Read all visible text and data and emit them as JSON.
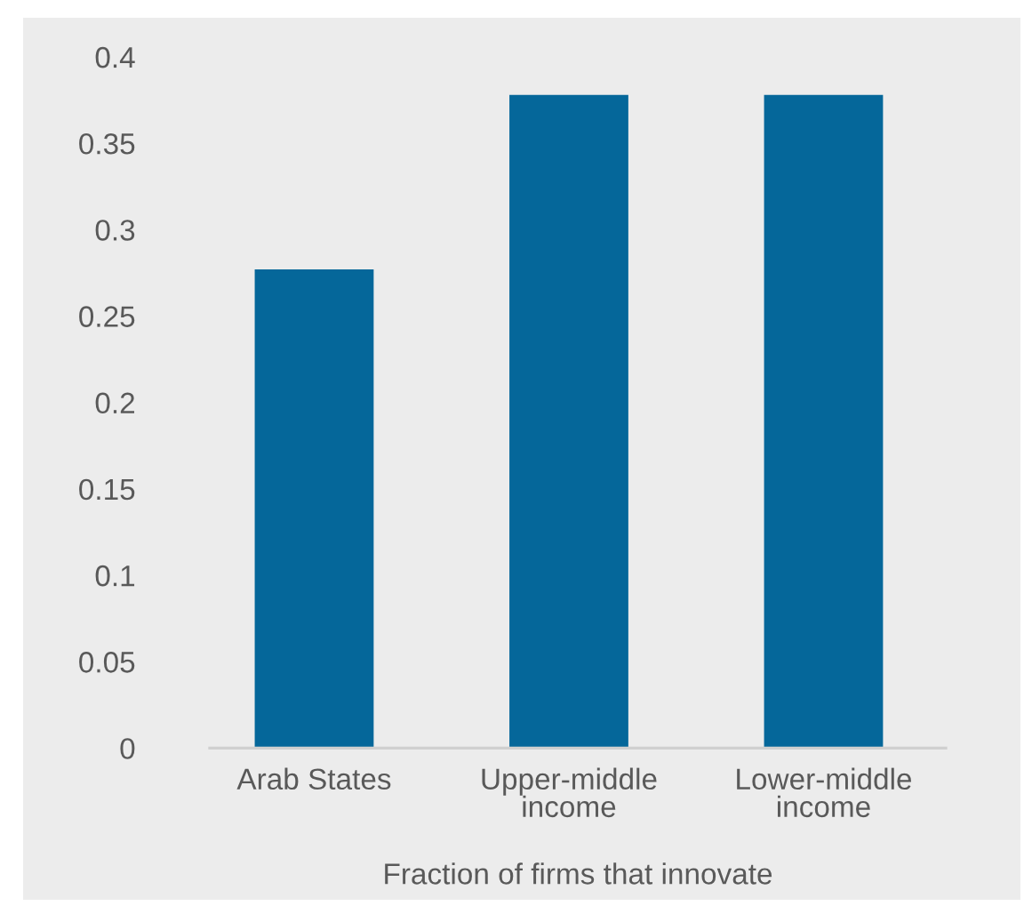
{
  "chart_data": {
    "type": "bar",
    "xlabel": "Fraction of firms that innovate",
    "categories": [
      "Arab States",
      "Upper-middle\nincome",
      "Lower-middle\nincome"
    ],
    "values": [
      0.277,
      0.378,
      0.378
    ],
    "color": "#05679a",
    "ylim": [
      0,
      0.4
    ],
    "yticks": [
      0,
      0.05,
      0.1,
      0.15,
      0.2,
      0.25,
      0.3,
      0.35,
      0.4
    ],
    "grid": false,
    "legend": false
  }
}
